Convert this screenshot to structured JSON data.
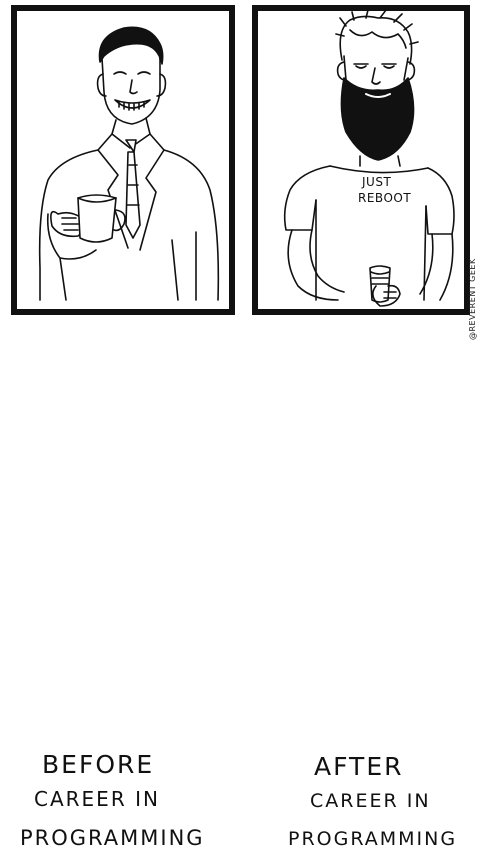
{
  "panels": {
    "before": {
      "caption_lines": [
        "BEFORE",
        "CAREER  IN",
        "PROGRAMMING"
      ]
    },
    "after": {
      "caption_lines": [
        "AFTER",
        "CAREER IN",
        "PROGRAMMING"
      ],
      "shirt_lines": [
        "JUST",
        "REBOOT"
      ]
    }
  },
  "watermark": "@REVERENT GEEK"
}
